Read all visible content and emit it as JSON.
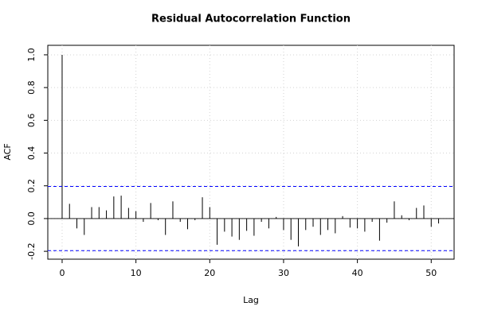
{
  "chart_data": {
    "type": "acf",
    "title": "Residual Autocorrelation Function",
    "x_label": "Lag",
    "y_label": "ACF",
    "x": [
      0,
      1,
      2,
      3,
      4,
      5,
      6,
      7,
      8,
      9,
      10,
      11,
      12,
      13,
      14,
      15,
      16,
      17,
      18,
      19,
      20,
      21,
      22,
      23,
      24,
      25,
      26,
      27,
      28,
      29,
      30,
      31,
      32,
      33,
      34,
      35,
      36,
      37,
      38,
      39,
      40,
      41,
      42,
      43,
      44,
      45,
      46,
      47,
      48,
      49,
      50,
      51
    ],
    "values": [
      1.0,
      0.09,
      -0.06,
      -0.1,
      0.07,
      0.07,
      0.05,
      0.135,
      0.14,
      0.065,
      0.045,
      -0.02,
      0.095,
      -0.01,
      -0.1,
      0.105,
      -0.02,
      -0.065,
      -0.01,
      0.13,
      0.07,
      -0.16,
      -0.08,
      -0.11,
      -0.13,
      -0.075,
      -0.105,
      -0.02,
      -0.06,
      0.01,
      -0.07,
      -0.13,
      -0.17,
      -0.07,
      -0.05,
      -0.1,
      -0.07,
      -0.09,
      0.015,
      -0.055,
      -0.06,
      -0.08,
      -0.02,
      -0.135,
      -0.025,
      0.105,
      0.02,
      -0.01,
      0.065,
      0.08,
      -0.05,
      -0.03
    ],
    "color": "#000000",
    "confidence_bounds": [
      -0.196,
      0.196
    ],
    "confidence_color": "#0000ff",
    "xlim": [
      -1.94,
      53.1
    ],
    "xticks": [
      0,
      10,
      20,
      30,
      40,
      50
    ],
    "ylim": [
      -0.248,
      1.058
    ],
    "yticks": [
      -0.2,
      {
        "value": 0,
        "label": "0.0"
      },
      0.2,
      0.4,
      0.6,
      0.8,
      {
        "value": 1,
        "label": "1.0"
      }
    ],
    "grid": true
  }
}
